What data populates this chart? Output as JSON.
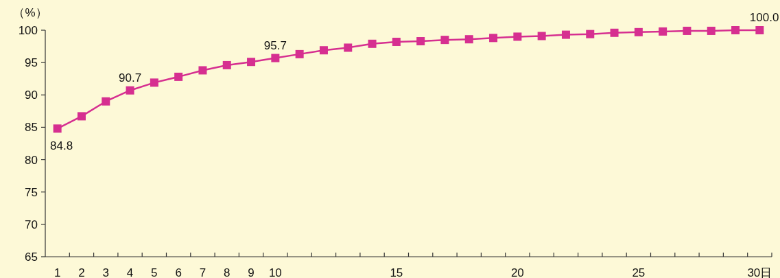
{
  "chart_data": {
    "type": "line",
    "ylabel": "（%）",
    "categories": [
      "1",
      "2",
      "3",
      "4",
      "5",
      "6",
      "7",
      "8",
      "9",
      "10",
      null,
      null,
      null,
      null,
      "15",
      null,
      null,
      null,
      null,
      "20",
      null,
      null,
      null,
      null,
      "25",
      null,
      null,
      null,
      null,
      "30日"
    ],
    "series": [
      {
        "color": "#d62f90",
        "values": [
          84.8,
          86.7,
          89.0,
          90.7,
          91.9,
          92.8,
          93.8,
          94.6,
          95.1,
          95.7,
          96.3,
          96.9,
          97.3,
          97.9,
          98.2,
          98.3,
          98.5,
          98.6,
          98.8,
          99.0,
          99.1,
          99.3,
          99.4,
          99.6,
          99.7,
          99.8,
          99.9,
          99.9,
          100.0,
          100.0
        ],
        "value_labels": [
          "84.8",
          null,
          null,
          "90.7",
          null,
          null,
          null,
          null,
          null,
          "95.7",
          null,
          null,
          null,
          null,
          null,
          null,
          null,
          null,
          null,
          null,
          null,
          null,
          null,
          null,
          null,
          null,
          null,
          null,
          null,
          "100.0"
        ]
      }
    ],
    "ylim": [
      65,
      100
    ],
    "yticks": [
      65,
      70,
      75,
      80,
      85,
      90,
      95,
      100
    ],
    "marker": "square",
    "line_style": "solid",
    "grid": false
  }
}
